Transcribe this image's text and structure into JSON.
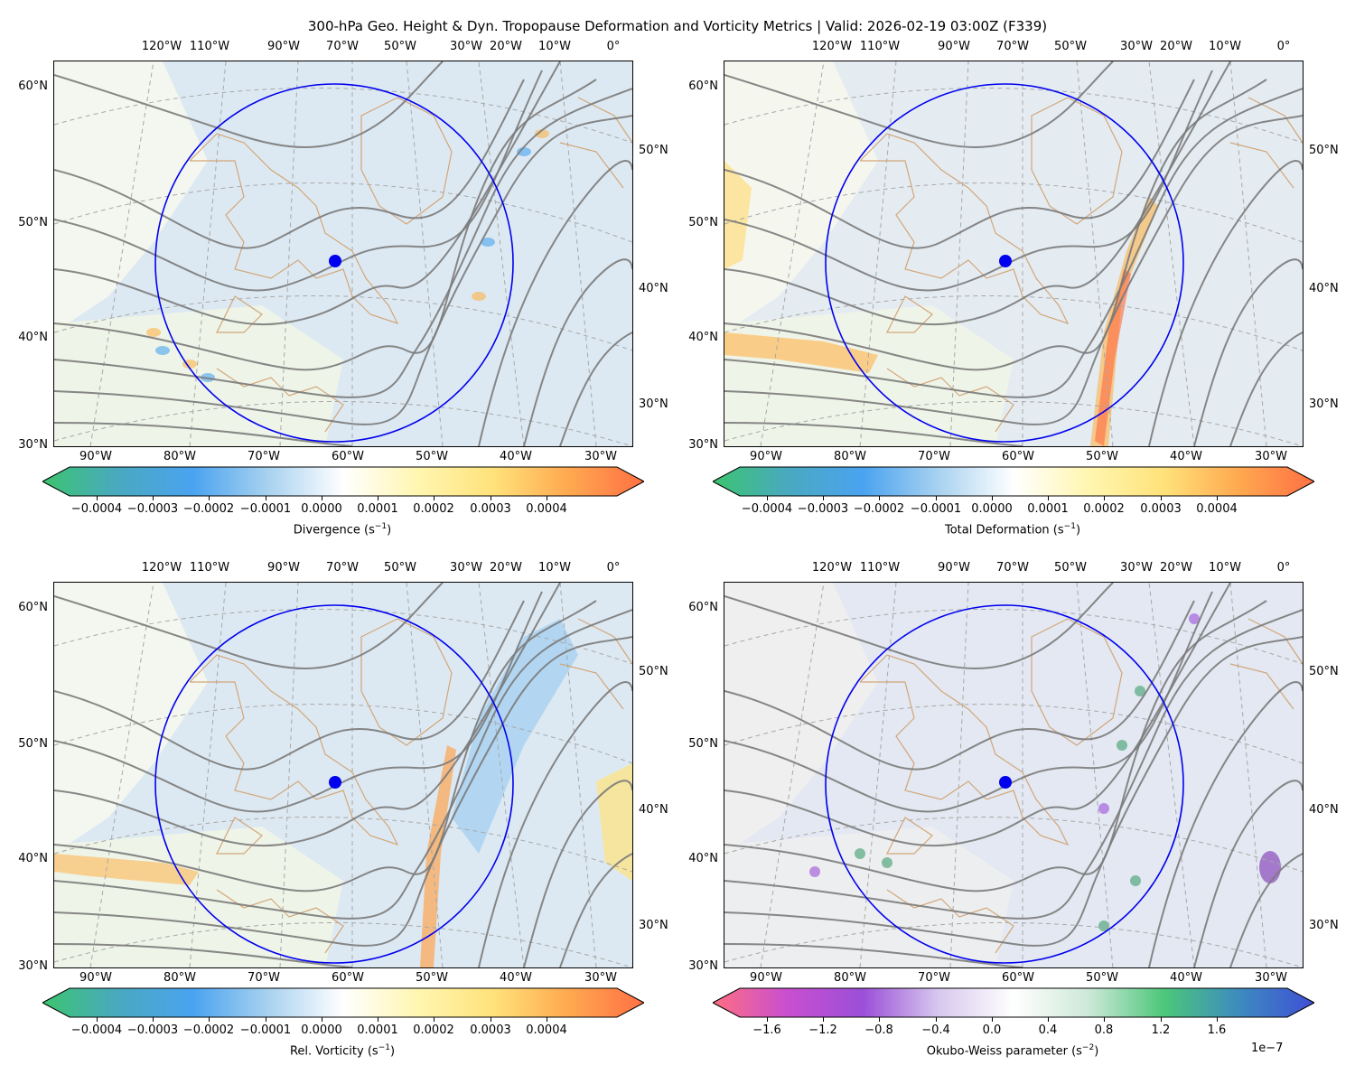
{
  "title": "300-hPa Geo. Height & Dyn. Tropopause Deformation and Vorticity Metrics |  Valid: 2026-02-19 03:00Z (F339)",
  "top_lon_labels": [
    "120°W",
    "110°W",
    "90°W",
    "70°W",
    "50°W",
    "30°W",
    "20°W",
    "10°W",
    "0°"
  ],
  "bottom_lon_labels": [
    "90°W",
    "80°W",
    "70°W",
    "60°W",
    "50°W",
    "40°W",
    "30°W"
  ],
  "left_lat_labels": [
    "60°N",
    "50°N",
    "40°N",
    "30°N"
  ],
  "right_lat_labels": [
    "50°N",
    "40°N",
    "30°N"
  ],
  "panels": [
    {
      "name": "divergence",
      "colorbar_label": "Divergence (s$^{-1}$)",
      "colorbar_label_base": "Divergence (s",
      "colorbar_label_exp": "−1",
      "colorbar_label_end": ")",
      "ticks": [
        "−0.0004",
        "−0.0003",
        "−0.0002",
        "−0.0001",
        "0.0000",
        "0.0001",
        "0.0002",
        "0.0003",
        "0.0004"
      ],
      "offset": ""
    },
    {
      "name": "total-deformation",
      "colorbar_label_base": "Total Deformation (s",
      "colorbar_label_exp": "−1",
      "colorbar_label_end": ")",
      "ticks": [
        "−0.0004",
        "−0.0003",
        "−0.0002",
        "−0.0001",
        "0.0000",
        "0.0001",
        "0.0002",
        "0.0003",
        "0.0004"
      ],
      "offset": ""
    },
    {
      "name": "relative-vorticity",
      "colorbar_label_base": "Rel. Vorticity (s",
      "colorbar_label_exp": "−1",
      "colorbar_label_end": ")",
      "ticks": [
        "−0.0004",
        "−0.0003",
        "−0.0002",
        "−0.0001",
        "0.0000",
        "0.0001",
        "0.0002",
        "0.0003",
        "0.0004"
      ],
      "offset": ""
    },
    {
      "name": "okubo-weiss",
      "colorbar_label_base": "Okubo-Weiss parameter (s",
      "colorbar_label_exp": "−2",
      "colorbar_label_end": ")",
      "ticks": [
        "−1.6",
        "−1.2",
        "−0.8",
        "−0.4",
        "0.0",
        "0.4",
        "0.8",
        "1.2",
        "1.6"
      ],
      "offset": "1e−7"
    }
  ],
  "colors": {
    "height_contour": "#7a7a7a",
    "coast": "#d2a679",
    "circle": "#0000ee",
    "colormap_div": [
      "#3cc46f",
      "#49a9c0",
      "#4aa3f0",
      "#a8d2f0",
      "#ffffff",
      "#fff6b0",
      "#ffe27a",
      "#ffa850",
      "#ff7043"
    ],
    "colormap_ow": [
      "#ff6e82",
      "#c84fd0",
      "#9b4fd8",
      "#d7c8ee",
      "#ffffff",
      "#cde8d8",
      "#4cc77a",
      "#3d8bbf",
      "#3f4fd6"
    ]
  }
}
